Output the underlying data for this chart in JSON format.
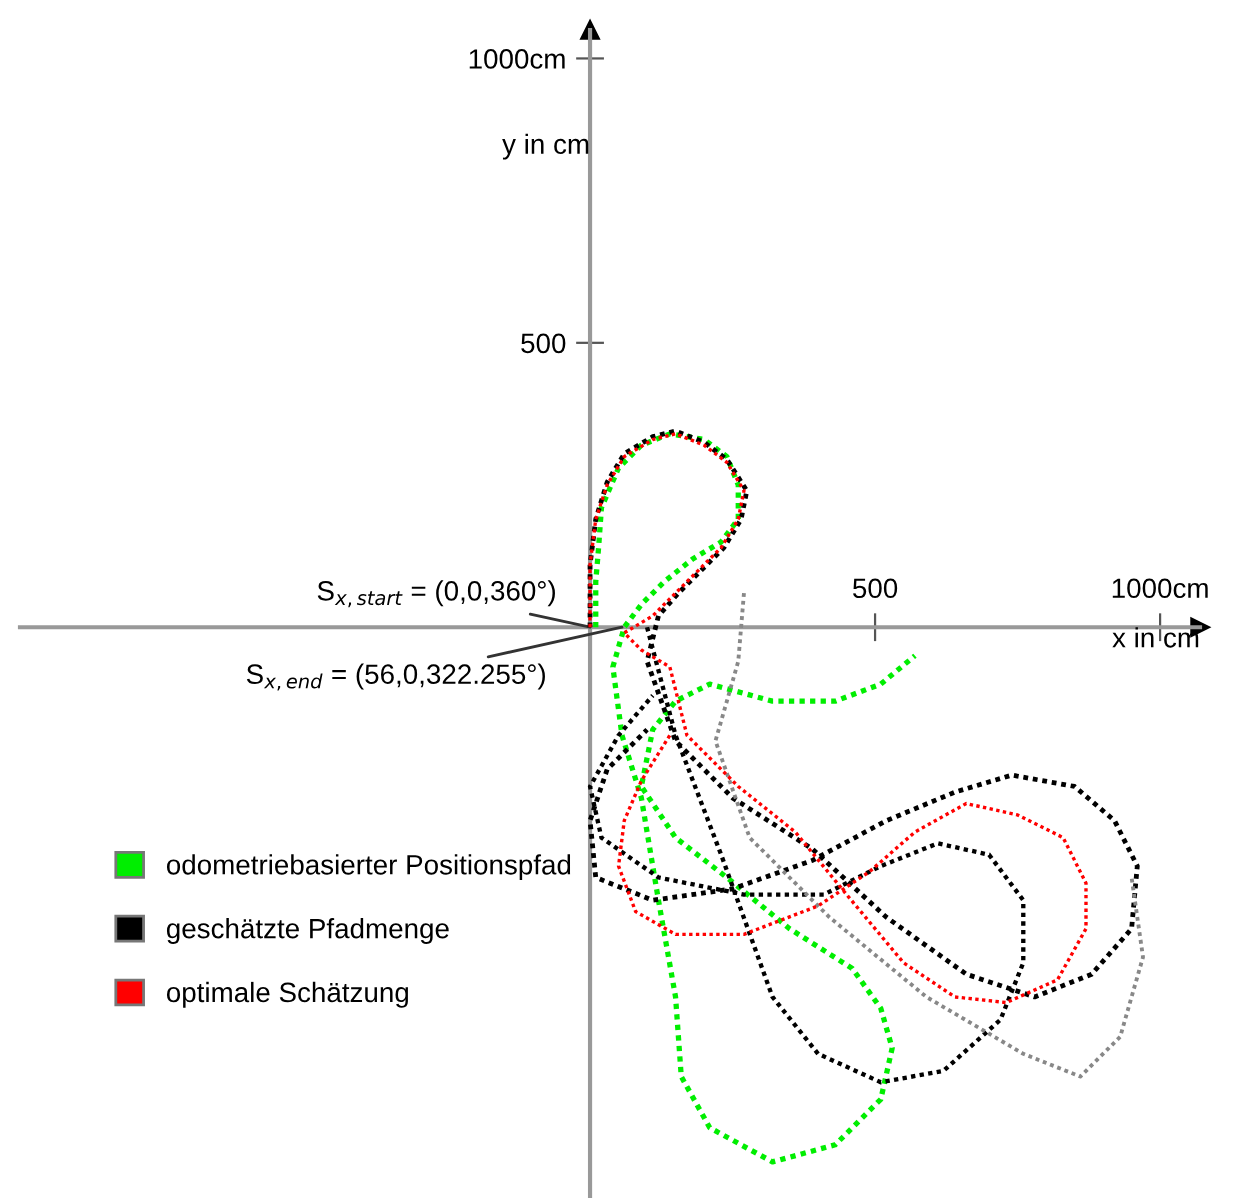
{
  "chart_data": {
    "type": "line",
    "xlabel": "x in cm",
    "ylabel": "y in cm",
    "xlim": [
      -1000,
      1070
    ],
    "ylim": [
      -1000,
      1050
    ],
    "xticks": [
      {
        "value": 500,
        "label": "500"
      },
      {
        "value": 1000,
        "label": "1000cm"
      }
    ],
    "yticks": [
      {
        "value": 500,
        "label": "500"
      },
      {
        "value": 1000,
        "label": "1000cm"
      }
    ],
    "grid": false,
    "legend": "bottom left",
    "line_style": "dotted",
    "marker": "none",
    "annotations": [
      {
        "text": "S$_{x,start}$ = (0,0,360°)",
        "x": 0,
        "y": 0
      },
      {
        "text": "S$_{x,end}$ = (56,0,322.255°)",
        "x": 56,
        "y": 0
      }
    ],
    "series": [
      {
        "name": "odometriebasierter Positionspfad",
        "color": "#00ee00",
        "x": [
          10,
          10,
          15,
          20,
          50,
          90,
          140,
          200,
          240,
          260,
          260,
          230,
          180,
          130,
          90,
          60,
          40,
          56,
          90,
          120,
          150,
          160,
          210,
          320,
          430,
          510,
          530,
          510,
          460,
          350,
          240,
          150,
          90,
          110,
          150,
          210,
          320,
          430,
          510,
          570
        ],
        "values": [
          0,
          80,
          140,
          210,
          280,
          320,
          340,
          330,
          300,
          250,
          190,
          150,
          120,
          80,
          40,
          0,
          -70,
          -190,
          -300,
          -480,
          -650,
          -790,
          -880,
          -940,
          -910,
          -830,
          -740,
          -670,
          -600,
          -530,
          -440,
          -370,
          -280,
          -180,
          -130,
          -100,
          -130,
          -130,
          -100,
          -50
        ]
      },
      {
        "name": "geschätzte Pfadmenge",
        "color": "#000000",
        "x": [
          0,
          0,
          10,
          30,
          60,
          110,
          150,
          200,
          240,
          275,
          265,
          235,
          195,
          155,
          120,
          100,
          150,
          250,
          390,
          520,
          660,
          780,
          880,
          950,
          960,
          920,
          850,
          740,
          640,
          520,
          390,
          250,
          110,
          10,
          0,
          30,
          100
        ],
        "values": [
          0,
          110,
          190,
          255,
          305,
          335,
          345,
          325,
          295,
          240,
          190,
          140,
          100,
          60,
          20,
          -60,
          -200,
          -300,
          -390,
          -510,
          -610,
          -650,
          -610,
          -530,
          -420,
          -340,
          -280,
          -260,
          -290,
          -340,
          -410,
          -460,
          -480,
          -440,
          -340,
          -250,
          -180
        ]
      },
      {
        "color": "#000000",
        "x": [
          100,
          150,
          230,
          320,
          400,
          510,
          620,
          720,
          760,
          760,
          700,
          610,
          510,
          410,
          270,
          120,
          20,
          0,
          50,
          110
        ],
        "values": [
          0,
          -190,
          -400,
          -650,
          -750,
          -800,
          -780,
          -690,
          -590,
          -480,
          -400,
          -380,
          -420,
          -470,
          -470,
          -440,
          -370,
          -280,
          -190,
          -120
        ]
      },
      {
        "color": "#888888",
        "x": [
          270,
          260,
          220,
          280,
          420,
          590,
          760,
          860,
          930,
          970,
          950
        ],
        "values": [
          60,
          -60,
          -200,
          -370,
          -510,
          -650,
          -750,
          -790,
          -720,
          -580,
          -440
        ]
      },
      {
        "name": "optimale Schätzung",
        "color": "#ff0000",
        "x": [
          0,
          0,
          10,
          30,
          60,
          110,
          150,
          200,
          240,
          270,
          260,
          230,
          190,
          150,
          110,
          60,
          90,
          140,
          170,
          260,
          360,
          450,
          550,
          640,
          730,
          820,
          870,
          870,
          830,
          750,
          660,
          570,
          490,
          400,
          270,
          150,
          80,
          50,
          60,
          90,
          140
        ],
        "values": [
          0,
          110,
          190,
          250,
          300,
          330,
          340,
          320,
          290,
          240,
          190,
          140,
          100,
          60,
          20,
          -10,
          -40,
          -70,
          -190,
          -280,
          -360,
          -470,
          -590,
          -650,
          -660,
          -620,
          -530,
          -450,
          -370,
          -330,
          -310,
          -360,
          -430,
          -490,
          -540,
          -540,
          -500,
          -420,
          -340,
          -270,
          -190
        ]
      }
    ]
  }
}
